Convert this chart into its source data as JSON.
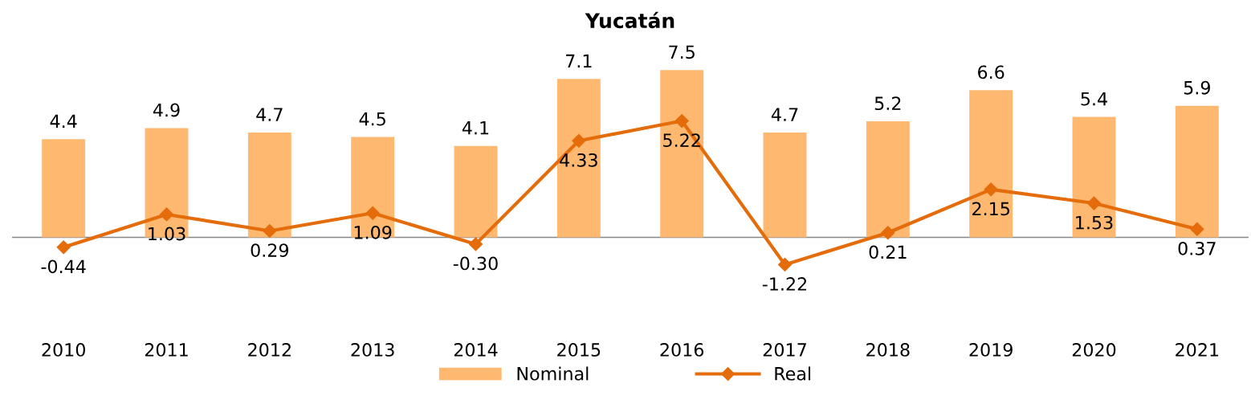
{
  "chart_data": {
    "type": "bar",
    "title": "Yucatán",
    "categories": [
      "2010",
      "2011",
      "2012",
      "2013",
      "2014",
      "2015",
      "2016",
      "2017",
      "2018",
      "2019",
      "2020",
      "2021"
    ],
    "series": [
      {
        "name": "Nominal",
        "color": "#ffb870",
        "values": [
          4.4,
          4.9,
          4.7,
          4.5,
          4.1,
          7.1,
          7.5,
          4.7,
          5.2,
          6.6,
          5.4,
          5.9
        ],
        "value_labels": [
          "4.4",
          "4.9",
          "4.7",
          "4.5",
          "4.1",
          "7.1",
          "7.5",
          "4.7",
          "5.2",
          "6.6",
          "5.4",
          "5.9"
        ]
      },
      {
        "name": "Real",
        "type": "line",
        "color": "#e46c0a",
        "marker": "diamond",
        "values": [
          -0.44,
          1.03,
          0.29,
          1.09,
          -0.3,
          4.33,
          5.22,
          -1.22,
          0.21,
          2.15,
          1.53,
          0.37
        ],
        "value_labels": [
          "-0.44",
          "1.03",
          "0.29",
          "1.09",
          "-0.30",
          "4.33",
          "5.22",
          "-1.22",
          "0.21",
          "2.15",
          "1.53",
          "0.37"
        ]
      }
    ],
    "relative": false,
    "grid": false,
    "legend": "bottom"
  }
}
